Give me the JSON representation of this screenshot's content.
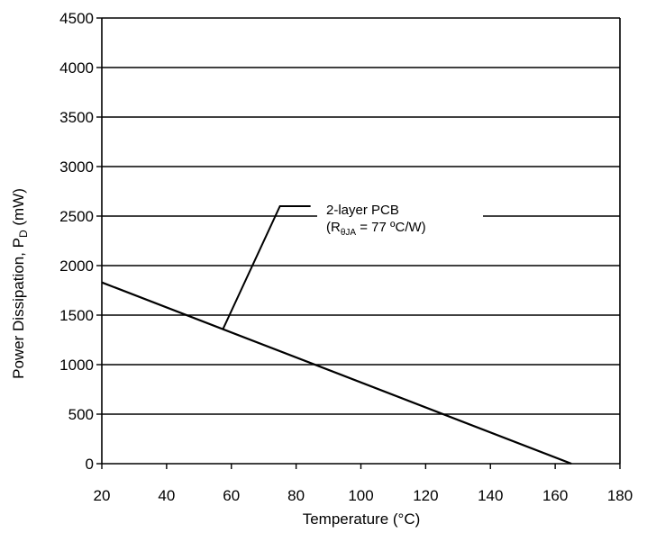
{
  "chart_data": {
    "type": "line",
    "title": "",
    "xlabel": "Temperature (°C)",
    "ylabel": {
      "prefix": "Power Dissipation, P",
      "subscript": "D",
      "suffix": " (mW)"
    },
    "xlim": [
      20,
      180
    ],
    "ylim": [
      0,
      4500
    ],
    "x_ticks": [
      20,
      40,
      60,
      80,
      100,
      120,
      140,
      160,
      180
    ],
    "y_ticks": [
      0,
      500,
      1000,
      1500,
      2000,
      2500,
      3000,
      3500,
      4000,
      4500
    ],
    "grid": "horizontal",
    "series": [
      {
        "name": "",
        "x": [
          20,
          165
        ],
        "y": [
          1830,
          0
        ]
      }
    ],
    "annotation": {
      "line1": "2-layer PCB",
      "line2": {
        "prefix": "(R",
        "subscript": "θJA",
        "suffix": " = 77 ºC/W)"
      },
      "pointer_target": [
        57.5,
        1365
      ],
      "pointer_elbow": [
        75,
        2600
      ]
    }
  }
}
